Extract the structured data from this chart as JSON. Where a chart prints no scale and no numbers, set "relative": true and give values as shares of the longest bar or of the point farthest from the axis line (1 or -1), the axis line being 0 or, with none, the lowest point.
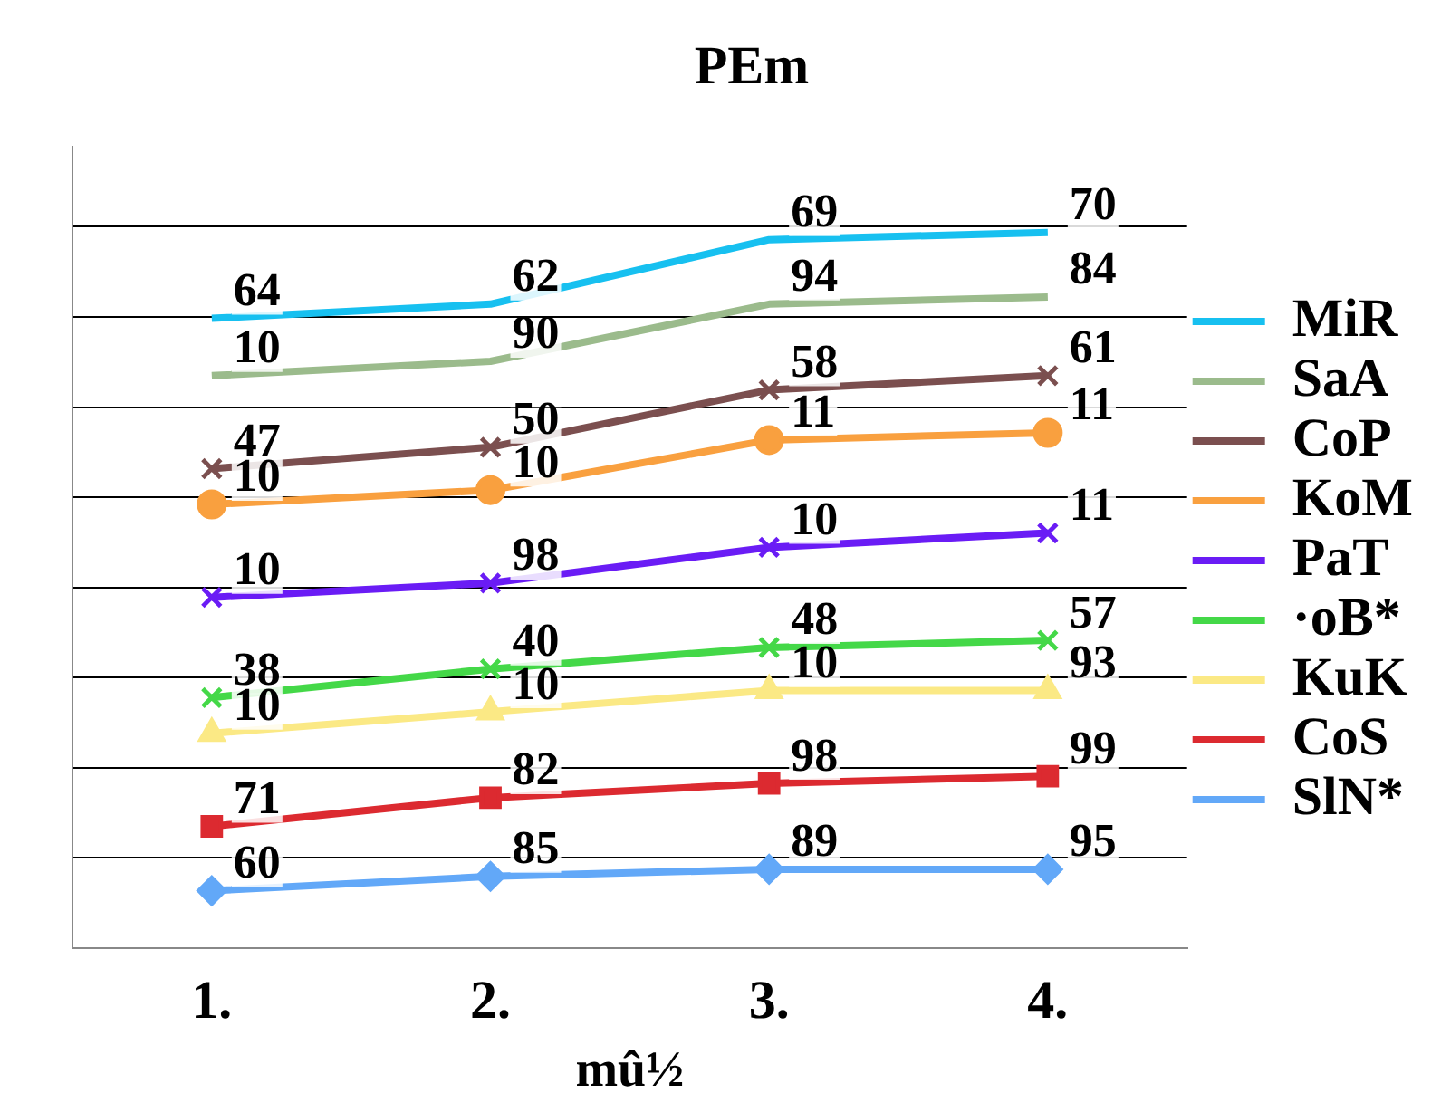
{
  "chart_data": {
    "type": "line",
    "title": "PEm",
    "xlabel": "mû½",
    "categories": [
      "1.",
      "2.",
      "3.",
      "4."
    ],
    "relative": true,
    "grid": "y",
    "legend": "right",
    "tick_labels": "x",
    "series": [
      {
        "name": "MiR",
        "color": "#17c0f0",
        "marker": "none",
        "values": [
          0.88,
          0.9,
          0.99,
          1
        ]
      },
      {
        "name": "SaA",
        "color": "#9bbb8c",
        "marker": "none",
        "values": [
          0.8,
          0.82,
          0.9,
          0.91
        ]
      },
      {
        "name": "CoP",
        "color": "#7b4f4f",
        "marker": "cross",
        "values": [
          0.67,
          0.7,
          0.78,
          0.8
        ]
      },
      {
        "name": "KoM",
        "color": "#f9a03f",
        "marker": "circle",
        "values": [
          0.62,
          0.64,
          0.71,
          0.72
        ]
      },
      {
        "name": "PaT",
        "color": "#6a1cf5",
        "marker": "cross",
        "values": [
          0.49,
          0.51,
          0.56,
          0.58
        ]
      },
      {
        "name": "·oB*",
        "color": "#44d848",
        "marker": "cross",
        "values": [
          0.35,
          0.39,
          0.42,
          0.43
        ]
      },
      {
        "name": "KuK",
        "color": "#fbe985",
        "marker": "triangle",
        "values": [
          0.3,
          0.33,
          0.36,
          0.36
        ]
      },
      {
        "name": "CoS",
        "color": "#dc2a30",
        "marker": "square",
        "values": [
          0.17,
          0.21,
          0.23,
          0.24
        ]
      },
      {
        "name": "SlN*",
        "color": "#62a8f8",
        "marker": "diamond",
        "values": [
          0.08,
          0.1,
          0.11,
          0.11
        ]
      }
    ],
    "annotations": [
      {
        "text": "64",
        "x": "1.",
        "y": 0.88
      },
      {
        "text": "62",
        "x": "2.",
        "y": 0.9
      },
      {
        "text": "69",
        "x": "3.",
        "y": 0.99
      },
      {
        "text": "70",
        "x": "4.",
        "y": 1
      },
      {
        "text": "10",
        "x": "1.",
        "y": 0.8
      },
      {
        "text": "90",
        "x": "2.",
        "y": 0.82
      },
      {
        "text": "94",
        "x": "3.",
        "y": 0.9
      },
      {
        "text": "84",
        "x": "4.",
        "y": 0.91
      },
      {
        "text": "47",
        "x": "1.",
        "y": 0.67
      },
      {
        "text": "50",
        "x": "2.",
        "y": 0.7
      },
      {
        "text": "58",
        "x": "3.",
        "y": 0.78
      },
      {
        "text": "61",
        "x": "4.",
        "y": 0.8
      },
      {
        "text": "10",
        "x": "1.",
        "y": 0.62
      },
      {
        "text": "10",
        "x": "2.",
        "y": 0.64
      },
      {
        "text": "11",
        "x": "3.",
        "y": 0.71
      },
      {
        "text": "11",
        "x": "4.",
        "y": 0.72
      },
      {
        "text": "10",
        "x": "1.",
        "y": 0.49
      },
      {
        "text": "98",
        "x": "2.",
        "y": 0.51
      },
      {
        "text": "10",
        "x": "3.",
        "y": 0.56
      },
      {
        "text": "11",
        "x": "4.",
        "y": 0.58
      },
      {
        "text": "38",
        "x": "1.",
        "y": 0.35
      },
      {
        "text": "40",
        "x": "2.",
        "y": 0.39
      },
      {
        "text": "48",
        "x": "3.",
        "y": 0.42
      },
      {
        "text": "57",
        "x": "4.",
        "y": 0.43
      },
      {
        "text": "10",
        "x": "1.",
        "y": 0.3
      },
      {
        "text": "10",
        "x": "2.",
        "y": 0.33
      },
      {
        "text": "10",
        "x": "3.",
        "y": 0.36
      },
      {
        "text": "93",
        "x": "4.",
        "y": 0.36
      },
      {
        "text": "71",
        "x": "1.",
        "y": 0.17
      },
      {
        "text": "82",
        "x": "2.",
        "y": 0.21
      },
      {
        "text": "98",
        "x": "3.",
        "y": 0.23
      },
      {
        "text": "99",
        "x": "4.",
        "y": 0.24
      },
      {
        "text": "60",
        "x": "1.",
        "y": 0.08
      },
      {
        "text": "85",
        "x": "2.",
        "y": 0.1
      },
      {
        "text": "89",
        "x": "3.",
        "y": 0.11
      },
      {
        "text": "95",
        "x": "4.",
        "y": 0.11
      }
    ]
  }
}
